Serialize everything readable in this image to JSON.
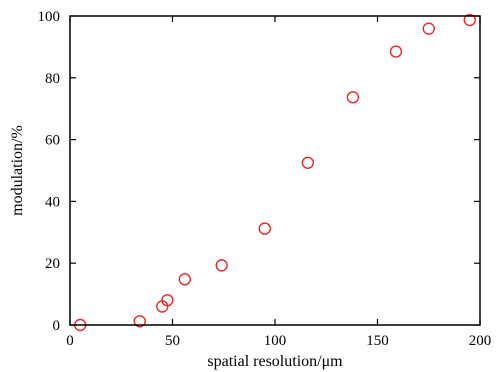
{
  "chart_data": {
    "type": "scatter",
    "title": "",
    "xlabel": "spatial resolution/μm",
    "ylabel": "modulation/%",
    "xlim": [
      0,
      200
    ],
    "ylim": [
      0,
      100
    ],
    "xticks": [
      0,
      50,
      100,
      150,
      200
    ],
    "yticks": [
      0,
      20,
      40,
      60,
      80,
      100
    ],
    "grid": false,
    "marker": "hollow-circle",
    "marker_color": "#e8262a",
    "series": [
      {
        "x": [
          5,
          34,
          45,
          47.5,
          56,
          74,
          95,
          116,
          138,
          159,
          175,
          195
        ],
        "y": [
          0,
          1.2,
          6,
          8,
          14.8,
          19.3,
          31.2,
          52.5,
          73.7,
          88.5,
          95.9,
          98.7
        ]
      }
    ]
  }
}
